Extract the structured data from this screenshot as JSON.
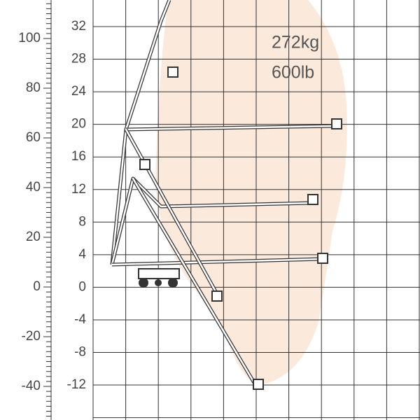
{
  "ruler_feet": [
    "100",
    "80",
    "60",
    "40",
    "20",
    "0",
    "-20",
    "-40"
  ],
  "ruler_meters": [
    "32",
    "28",
    "24",
    "20",
    "16",
    "12",
    "8",
    "4",
    "0",
    "-4",
    "-8",
    "-12"
  ],
  "capacity": {
    "kg": "272kg",
    "lb": "600lb"
  }
}
